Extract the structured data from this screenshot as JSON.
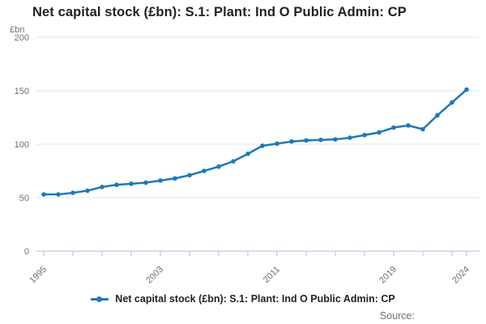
{
  "title": "Net capital stock (£bn): S.1: Plant: Ind O Public Admin: CP",
  "y_axis_unit": "£bn",
  "source_label": "Source:",
  "legend": {
    "label": "Net capital stock (£bn): S.1: Plant: Ind O Public Admin: CP"
  },
  "colors": {
    "line": "#1f78b8",
    "grid": "#e6e6e6",
    "axis": "#a9c0dd",
    "muted_text": "#707070",
    "title_text": "#222222"
  },
  "chart_data": {
    "type": "line",
    "title": "Net capital stock (£bn): S.1: Plant: Ind O Public Admin: CP",
    "xlabel": "",
    "ylabel": "£bn",
    "ylim": [
      0,
      200
    ],
    "xlim": [
      1995,
      2024
    ],
    "grid": "horizontal",
    "legend_position": "bottom",
    "y_ticks": [
      0,
      50,
      100,
      150,
      200
    ],
    "x_tick_years": [
      1995,
      1997,
      1999,
      2001,
      2003,
      2005,
      2007,
      2009,
      2011,
      2013,
      2015,
      2017,
      2019,
      2021,
      2023,
      2024
    ],
    "x_label_years": [
      1995,
      2003,
      2011,
      2019,
      2024
    ],
    "x": [
      1995,
      1996,
      1997,
      1998,
      1999,
      2000,
      2001,
      2002,
      2003,
      2004,
      2005,
      2006,
      2007,
      2008,
      2009,
      2010,
      2011,
      2012,
      2013,
      2014,
      2015,
      2016,
      2017,
      2018,
      2019,
      2020,
      2021,
      2022,
      2023,
      2024
    ],
    "series": [
      {
        "name": "Net capital stock (£bn): S.1: Plant: Ind O Public Admin: CP",
        "values": [
          53,
          53,
          54.5,
          56.5,
          60,
          62,
          63,
          64,
          66,
          68,
          71,
          75,
          79,
          84,
          91,
          98.5,
          100.5,
          102.5,
          103.5,
          104,
          104.5,
          106,
          108.5,
          111,
          115.5,
          117.5,
          114,
          127,
          139,
          151
        ]
      }
    ]
  }
}
